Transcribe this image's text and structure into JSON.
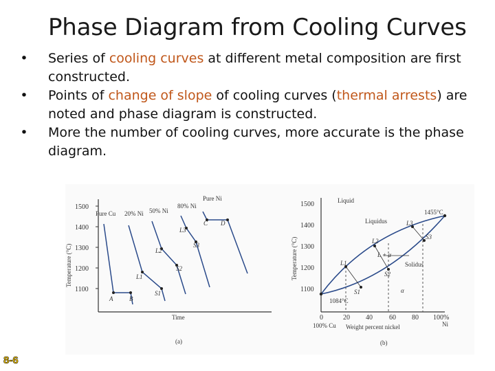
{
  "title": "Phase Diagram from Cooling Curves",
  "bullets": [
    {
      "pre": " Series of ",
      "hl1": "cooling curves",
      "mid": " at different metal composition are first constructed.",
      "hl2": "",
      "post": ""
    },
    {
      "pre": " Points of ",
      "hl1": "change of slope",
      "mid": " of cooling curves (",
      "hl2": "thermal arrests",
      "post": ") are noted and phase diagram is constructed."
    },
    {
      "pre": " More the number of cooling curves, more accurate is the phase diagram.",
      "hl1": "",
      "mid": "",
      "hl2": "",
      "post": ""
    }
  ],
  "bullet_char": "•",
  "slide_number": "8-6",
  "colors": {
    "highlight": "#c0571a",
    "slide_number": "#ffcc00"
  },
  "figure": {
    "left": {
      "ylabel": "Temperature (°C)",
      "xlabel": "Time",
      "caption": "(a)",
      "yticks": [
        "1500",
        "1400",
        "1300",
        "1200",
        "1100"
      ],
      "curve_labels": [
        "Pure Cu",
        "20% Ni",
        "50% Ni",
        "80% Ni",
        "Pure Ni"
      ],
      "points": [
        "A",
        "B",
        "L1",
        "S1",
        "L2",
        "S2",
        "L3",
        "S3",
        "C",
        "D"
      ]
    },
    "right": {
      "ylabel": "Temperature (°C)",
      "xlabel": "Weight percent nickel",
      "caption": "(b)",
      "yticks": [
        "1500",
        "1400",
        "1300",
        "1200",
        "1100"
      ],
      "xticks": [
        "0",
        "20",
        "40",
        "60",
        "80",
        "100%"
      ],
      "x_left_label": "100% Cu",
      "x_right_label": "Ni",
      "regions": [
        "Liquid",
        "Liquidus",
        "Solidus",
        "α",
        "L + α"
      ],
      "annotations": [
        "1455°C",
        "1084°C"
      ],
      "points": [
        "L1",
        "S1",
        "L2",
        "S2",
        "L3",
        "S3"
      ]
    }
  }
}
